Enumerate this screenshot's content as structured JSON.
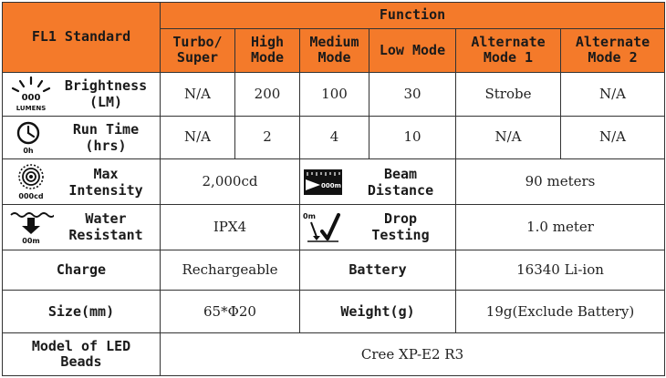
{
  "header": {
    "corner": "FL1 Standard",
    "function": "Function",
    "modes": [
      [
        "Turbo/",
        "Super"
      ],
      [
        "High",
        "Mode"
      ],
      [
        "Medium",
        "Mode"
      ],
      [
        "Low Mode",
        ""
      ],
      [
        "Alternate",
        "Mode 1"
      ],
      [
        "Alternate",
        "Mode 2"
      ]
    ]
  },
  "rows": {
    "brightness": {
      "icon": "lumens-icon",
      "icon_text": "000",
      "icon_sub": "LUMENS",
      "label": [
        "Brightness",
        "(LM)"
      ],
      "values": [
        "N/A",
        "200",
        "100",
        "30",
        "Strobe",
        "N/A"
      ]
    },
    "runtime": {
      "icon": "clock-icon",
      "icon_sub": "0h",
      "label": [
        "Run Time",
        "(hrs)"
      ],
      "values": [
        "N/A",
        "2",
        "4",
        "10",
        "N/A",
        "N/A"
      ]
    },
    "intensity": {
      "icon": "intensity-icon",
      "icon_sub": "000cd",
      "label": [
        "Max",
        "Intensity"
      ],
      "value": "2,000cd",
      "beam_icon": "beam-distance-icon",
      "beam_icon_text": "000m",
      "beam_label": [
        "Beam",
        "Distance"
      ],
      "beam_value": "90 meters"
    },
    "water": {
      "icon": "water-icon",
      "icon_sub": "00m",
      "label": [
        "Water",
        "Resistant"
      ],
      "value": "IPX4",
      "drop_icon": "drop-test-icon",
      "drop_icon_text": "0m",
      "drop_label": [
        "Drop",
        "Testing"
      ],
      "drop_value": "1.0 meter"
    },
    "charge": {
      "label": "Charge",
      "value": "Rechargeable",
      "battery_label": "Battery",
      "battery_value": "16340 Li-ion"
    },
    "size": {
      "label": "Size(mm)",
      "value": "65*Φ20",
      "weight_label": "Weight(g)",
      "weight_value": "19g(Exclude Battery)"
    },
    "led": {
      "label": [
        "Model of LED",
        "Beads"
      ],
      "value": "Cree XP-E2 R3"
    }
  },
  "colors": {
    "header_bg": "#f47a2a",
    "border": "#333333"
  }
}
